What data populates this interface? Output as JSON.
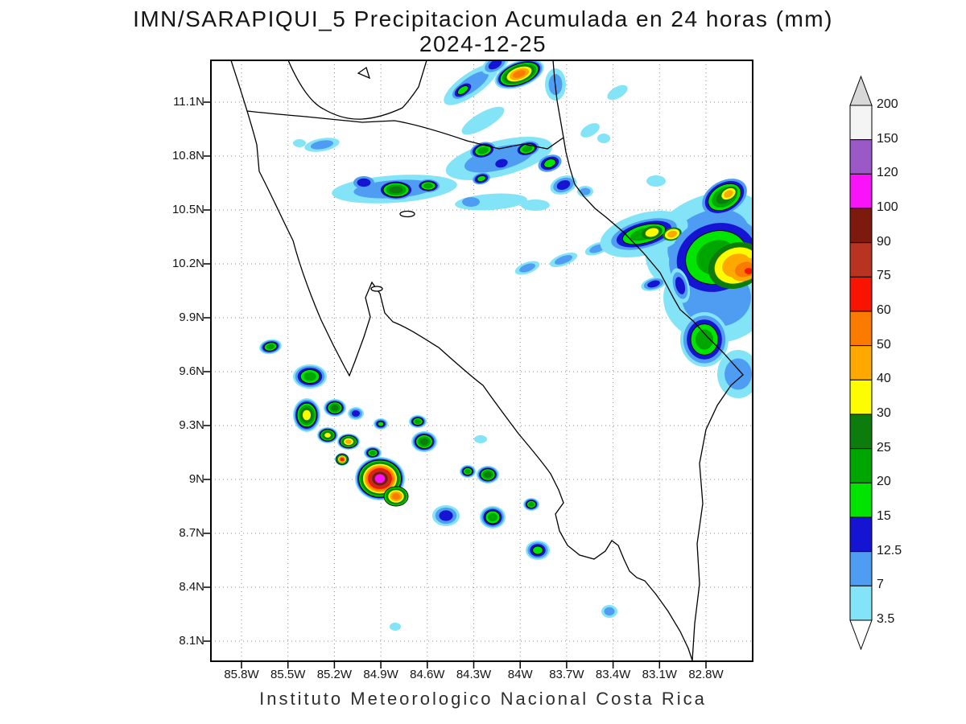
{
  "title": {
    "line1": "IMN/SARAPIQUI_5 Precipitacion Acumulada en 24 horas (mm)",
    "line2": "2024-12-25"
  },
  "footer": "Instituto Meteorologico Nacional Costa Rica",
  "map": {
    "region": "Costa Rica",
    "lat_tick_labels": [
      "11.1N",
      "10.8N",
      "10.5N",
      "10.2N",
      "9.9N",
      "9.6N",
      "9.3N",
      "9N",
      "8.7N",
      "8.4N",
      "8.1N"
    ],
    "lon_tick_labels": [
      "85.8W",
      "85.5W",
      "85.2W",
      "84.9W",
      "84.6W",
      "84.3W",
      "84W",
      "83.7W",
      "83.4W",
      "83.1W",
      "82.8W"
    ]
  },
  "colorbar": {
    "units": "mm",
    "tick_labels_top_to_bottom": [
      "200",
      "150",
      "120",
      "100",
      "90",
      "75",
      "60",
      "50",
      "40",
      "30",
      "25",
      "20",
      "15",
      "12.5",
      "7",
      "3.5"
    ],
    "segment_colors_top_to_bottom": [
      "#f4f4f4",
      "#9b59c7",
      "#f813f8",
      "#7c1a0e",
      "#b93321",
      "#f81400",
      "#fb7a00",
      "#ffa800",
      "#fdfd00",
      "#0c7c0c",
      "#00a600",
      "#00e400",
      "#1414d2",
      "#4f9df3",
      "#82e4f6"
    ],
    "top_arrow_color": "#d8d8d8",
    "bottom_arrow_color": "#ffffff"
  },
  "chart_data": {
    "type": "heatmap",
    "title": "IMN/SARAPIQUI_5 Precipitacion Acumulada en 24 horas (mm)",
    "date": "2024-12-25",
    "units": "mm",
    "legend_position": "right",
    "grid": "dotted",
    "lon_axis_deg_west": [
      85.8,
      85.5,
      85.2,
      84.9,
      84.6,
      84.3,
      84.0,
      83.7,
      83.4,
      83.1,
      82.8
    ],
    "lat_axis_deg_north": [
      11.1,
      10.8,
      10.5,
      10.2,
      9.9,
      9.6,
      9.3,
      9.0,
      8.7,
      8.4,
      8.1
    ],
    "contour_levels_mm": [
      3.5,
      7,
      12.5,
      15,
      20,
      25,
      30,
      40,
      50,
      60,
      75,
      90,
      100,
      120,
      150,
      200
    ],
    "level_colors_low_to_high": [
      "#82e4f6",
      "#4f9df3",
      "#1414d2",
      "#00e400",
      "#00a600",
      "#0c7c0c",
      "#fdfd00",
      "#ffa800",
      "#fb7a00",
      "#f81400",
      "#b93321",
      "#7c1a0e",
      "#f813f8",
      "#9b59c7",
      "#f4f4f4"
    ],
    "cell_coordinate_space": "map-area pixels, 673 wide x 747 tall, origin top-left of plot frame",
    "cell_format": [
      "x_px",
      "y_px",
      "rx_px",
      "ry_px",
      "rotation_deg",
      "peak_level_mm",
      "inner_start_level_mm_optional"
    ],
    "precip_cells": [
      [
        323,
        30,
        40,
        14,
        -35,
        7
      ],
      [
        313,
        37,
        15,
        8,
        -35,
        15,
        7
      ],
      [
        353,
        5,
        18,
        10,
        -30,
        12.5
      ],
      [
        383,
        17,
        32,
        16,
        -20,
        50
      ],
      [
        428,
        30,
        13,
        20,
        0,
        7
      ],
      [
        505,
        40,
        14,
        7,
        -30,
        3.5
      ],
      [
        471,
        87,
        13,
        7,
        -30,
        3.5
      ],
      [
        488,
        97,
        8,
        6,
        0,
        3.5
      ],
      [
        338,
        75,
        30,
        10,
        -30,
        3.5
      ],
      [
        358,
        122,
        68,
        22,
        -14,
        7
      ],
      [
        338,
        112,
        16,
        10,
        -14,
        20,
        7
      ],
      [
        393,
        110,
        15,
        9,
        -14,
        20,
        7
      ],
      [
        361,
        128,
        12,
        8,
        -14,
        12.5,
        7
      ],
      [
        336,
        147,
        11,
        7,
        -14,
        15,
        7
      ],
      [
        421,
        128,
        15,
        10,
        -20,
        15,
        7
      ],
      [
        438,
        155,
        17,
        11,
        -20,
        12.5
      ],
      [
        465,
        163,
        10,
        7,
        0,
        7
      ],
      [
        553,
        150,
        12,
        7,
        0,
        3.5
      ],
      [
        110,
        103,
        8,
        5,
        0,
        3.5
      ],
      [
        138,
        105,
        22,
        8,
        -10,
        7
      ],
      [
        228,
        160,
        78,
        17,
        -4,
        7
      ],
      [
        190,
        152,
        13,
        8,
        0,
        12.5,
        7
      ],
      [
        230,
        161,
        22,
        12,
        0,
        25,
        7
      ],
      [
        270,
        156,
        14,
        8,
        0,
        20,
        7
      ],
      [
        348,
        176,
        45,
        10,
        -4,
        3.5
      ],
      [
        323,
        176,
        11,
        6,
        0,
        7,
        7
      ],
      [
        403,
        180,
        18,
        7,
        0,
        3.5
      ],
      [
        393,
        258,
        16,
        7,
        -20,
        7
      ],
      [
        438,
        248,
        18,
        7,
        -20,
        7
      ],
      [
        480,
        234,
        16,
        7,
        -20,
        7
      ],
      [
        618,
        225,
        82,
        56,
        -25,
        7
      ],
      [
        628,
        295,
        66,
        56,
        0,
        7
      ],
      [
        538,
        216,
        56,
        26,
        -15,
        7
      ],
      [
        538,
        216,
        42,
        17,
        -15,
        20,
        7
      ],
      [
        548,
        214,
        13,
        8,
        -15,
        30,
        25
      ],
      [
        573,
        216,
        12,
        8,
        -15,
        40,
        25
      ],
      [
        628,
        245,
        60,
        50,
        -20,
        20,
        7
      ],
      [
        653,
        255,
        36,
        28,
        -20,
        40,
        25
      ],
      [
        663,
        260,
        19,
        14,
        -20,
        50,
        40
      ],
      [
        668,
        262,
        8,
        6,
        0,
        60,
        50
      ],
      [
        638,
        170,
        30,
        20,
        -30,
        25,
        7
      ],
      [
        643,
        166,
        12,
        8,
        -30,
        40,
        25
      ],
      [
        583,
        280,
        11,
        22,
        -15,
        12.5
      ],
      [
        550,
        278,
        16,
        8,
        -15,
        12.5
      ],
      [
        613,
        347,
        30,
        34,
        0,
        20
      ],
      [
        655,
        390,
        26,
        30,
        0,
        7
      ],
      [
        74,
        356,
        14,
        9,
        -10,
        20
      ],
      [
        123,
        393,
        21,
        15,
        0,
        20
      ],
      [
        119,
        441,
        17,
        21,
        0,
        30
      ],
      [
        154,
        432,
        14,
        11,
        0,
        25
      ],
      [
        180,
        439,
        10,
        8,
        0,
        12.5
      ],
      [
        145,
        466,
        13,
        10,
        0,
        30
      ],
      [
        171,
        474,
        14,
        10,
        0,
        40
      ],
      [
        163,
        496,
        9,
        8,
        0,
        60
      ],
      [
        201,
        488,
        11,
        8,
        0,
        20
      ],
      [
        210,
        520,
        31,
        27,
        0,
        100
      ],
      [
        230,
        542,
        15,
        12,
        0,
        50,
        15
      ],
      [
        265,
        474,
        16,
        13,
        0,
        25
      ],
      [
        257,
        449,
        11,
        8,
        0,
        20
      ],
      [
        211,
        452,
        9,
        7,
        0,
        15
      ],
      [
        335,
        471,
        8,
        5,
        0,
        3.5
      ],
      [
        292,
        566,
        17,
        13,
        0,
        12.5
      ],
      [
        319,
        511,
        10,
        8,
        0,
        20
      ],
      [
        344,
        515,
        14,
        11,
        0,
        25
      ],
      [
        350,
        568,
        16,
        14,
        0,
        20
      ],
      [
        398,
        552,
        10,
        8,
        0,
        20
      ],
      [
        406,
        609,
        15,
        12,
        0,
        15
      ],
      [
        495,
        685,
        10,
        8,
        0,
        7
      ],
      [
        229,
        704,
        7,
        5,
        0,
        3.5
      ]
    ]
  }
}
